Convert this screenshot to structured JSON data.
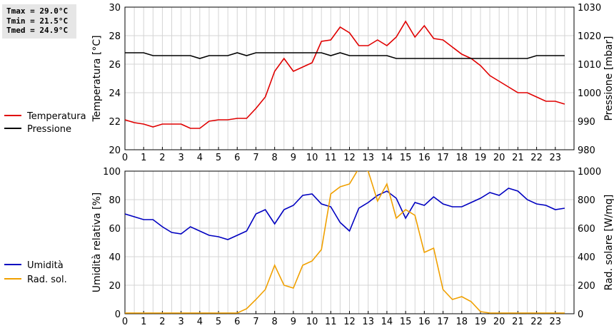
{
  "stats": {
    "tmax": "Tmax = 29.0°C",
    "tmin": "Tmin = 21.5°C",
    "tmed": "Tmed = 24.9°C"
  },
  "chart_data": [
    {
      "type": "line",
      "x_ticks": [
        "0",
        "1",
        "2",
        "3",
        "4",
        "5",
        "6",
        "7",
        "8",
        "9",
        "10",
        "11",
        "12",
        "13",
        "14",
        "15",
        "16",
        "17",
        "18",
        "19",
        "20",
        "21",
        "22",
        "23"
      ],
      "xlim": [
        0,
        24
      ],
      "y_left_ticks": [
        "20",
        "22",
        "24",
        "26",
        "28",
        "30"
      ],
      "ylim_left": [
        20,
        30
      ],
      "ylabel_left": "Temperatura [°C]",
      "y_right_ticks": [
        "980",
        "990",
        "1000",
        "1010",
        "1020",
        "1030"
      ],
      "ylim_right": [
        980,
        1030
      ],
      "ylabel_right": "Pressione [mbar]",
      "grid": true,
      "legend_position": "left",
      "series": [
        {
          "name": "Temperatura",
          "axis": "left",
          "color": "#e00000",
          "x": [
            0,
            0.5,
            1,
            1.5,
            2,
            2.5,
            3,
            3.5,
            4,
            4.5,
            5,
            5.5,
            6,
            6.5,
            7,
            7.5,
            8,
            8.5,
            9,
            9.5,
            10,
            10.5,
            11,
            11.5,
            12,
            12.5,
            13,
            13.5,
            14,
            14.5,
            15,
            15.5,
            16,
            16.5,
            17,
            17.5,
            18,
            18.5,
            19,
            19.5,
            20,
            20.5,
            21,
            21.5,
            22,
            22.5,
            23,
            23.5
          ],
          "y": [
            22.1,
            21.9,
            21.8,
            21.6,
            21.8,
            21.8,
            21.8,
            21.5,
            21.5,
            22.0,
            22.1,
            22.1,
            22.2,
            22.2,
            22.9,
            23.7,
            25.5,
            26.4,
            25.5,
            25.8,
            26.1,
            27.6,
            27.7,
            28.6,
            28.2,
            27.3,
            27.3,
            27.7,
            27.3,
            27.9,
            29.0,
            27.9,
            28.7,
            27.8,
            27.7,
            27.2,
            26.7,
            26.4,
            25.9,
            25.2,
            24.8,
            24.4,
            24.0,
            24.0,
            23.7,
            23.4,
            23.4,
            23.2
          ]
        },
        {
          "name": "Pressione",
          "axis": "right",
          "color": "#000000",
          "x": [
            0,
            0.5,
            1,
            1.5,
            2,
            2.5,
            3,
            3.5,
            4,
            4.5,
            5,
            5.5,
            6,
            6.5,
            7,
            7.5,
            8,
            8.5,
            9,
            9.5,
            10,
            10.5,
            11,
            11.5,
            12,
            12.5,
            13,
            13.5,
            14,
            14.5,
            15,
            15.5,
            16,
            16.5,
            17,
            17.5,
            18,
            18.5,
            19,
            19.5,
            20,
            20.5,
            21,
            21.5,
            22,
            22.5,
            23,
            23.5
          ],
          "y": [
            1014,
            1014,
            1014,
            1013,
            1013,
            1013,
            1013,
            1013,
            1012,
            1013,
            1013,
            1013,
            1014,
            1013,
            1014,
            1014,
            1014,
            1014,
            1014,
            1014,
            1014,
            1014,
            1013,
            1014,
            1013,
            1013,
            1013,
            1013,
            1013,
            1012,
            1012,
            1012,
            1012,
            1012,
            1012,
            1012,
            1012,
            1012,
            1012,
            1012,
            1012,
            1012,
            1012,
            1012,
            1013,
            1013,
            1013,
            1013
          ]
        }
      ]
    },
    {
      "type": "line",
      "x_ticks": [
        "0",
        "1",
        "2",
        "3",
        "4",
        "5",
        "6",
        "7",
        "8",
        "9",
        "10",
        "11",
        "12",
        "13",
        "14",
        "15",
        "16",
        "17",
        "18",
        "19",
        "20",
        "21",
        "22",
        "23"
      ],
      "xlim": [
        0,
        24
      ],
      "y_left_ticks": [
        "0",
        "20",
        "40",
        "60",
        "80",
        "100"
      ],
      "ylim_left": [
        0,
        100
      ],
      "ylabel_left": "Umidità relativa [%]",
      "y_right_ticks": [
        "0",
        "200",
        "400",
        "600",
        "800",
        "1000"
      ],
      "ylim_right": [
        0,
        1000
      ],
      "ylabel_right": "Rad. solare [W/mq]",
      "grid": true,
      "legend_position": "left",
      "series": [
        {
          "name": "Umidità",
          "axis": "left",
          "color": "#0000c0",
          "x": [
            0,
            0.5,
            1,
            1.5,
            2,
            2.5,
            3,
            3.5,
            4,
            4.5,
            5,
            5.5,
            6,
            6.5,
            7,
            7.5,
            8,
            8.5,
            9,
            9.5,
            10,
            10.5,
            11,
            11.5,
            12,
            12.5,
            13,
            13.5,
            14,
            14.5,
            15,
            15.5,
            16,
            16.5,
            17,
            17.5,
            18,
            18.5,
            19,
            19.5,
            20,
            20.5,
            21,
            21.5,
            22,
            22.5,
            23,
            23.5
          ],
          "y": [
            70,
            68,
            66,
            66,
            61,
            57,
            56,
            61,
            58,
            55,
            54,
            52,
            55,
            58,
            70,
            73,
            63,
            73,
            76,
            83,
            84,
            77,
            75,
            64,
            58,
            74,
            78,
            83,
            86,
            81,
            67,
            78,
            76,
            82,
            77,
            75,
            75,
            78,
            81,
            85,
            83,
            88,
            86,
            80,
            77,
            76,
            73,
            74
          ]
        },
        {
          "name": "Rad. sol.",
          "axis": "right",
          "color": "#f0a000",
          "x": [
            0,
            0.5,
            1,
            1.5,
            2,
            2.5,
            3,
            3.5,
            4,
            4.5,
            5,
            5.5,
            6,
            6.5,
            7,
            7.5,
            8,
            8.5,
            9,
            9.5,
            10,
            10.5,
            11,
            11.5,
            12,
            12.5,
            13,
            13.5,
            14,
            14.5,
            15,
            15.5,
            16,
            16.5,
            17,
            17.5,
            18,
            18.5,
            19,
            19.5,
            20,
            20.5,
            21,
            21.5,
            22,
            22.5,
            23,
            23.5
          ],
          "y": [
            5,
            5,
            5,
            5,
            5,
            5,
            5,
            5,
            5,
            5,
            5,
            5,
            5,
            35,
            100,
            170,
            340,
            200,
            180,
            340,
            370,
            450,
            840,
            890,
            910,
            1020,
            1000,
            790,
            910,
            670,
            730,
            690,
            430,
            460,
            170,
            100,
            120,
            85,
            15,
            5,
            5,
            5,
            5,
            5,
            5,
            5,
            5,
            5
          ]
        }
      ]
    }
  ]
}
